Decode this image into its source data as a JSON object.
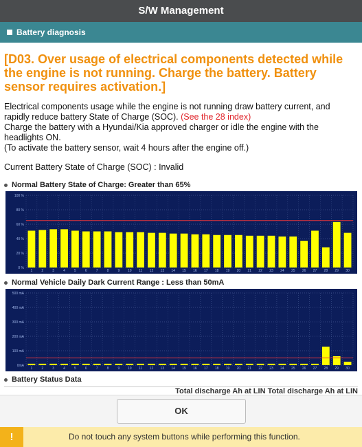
{
  "header": {
    "title": "S/W Management"
  },
  "section": {
    "title": "Battery diagnosis"
  },
  "message": {
    "heading": "[D03. Over usage of electrical components detected while the engine is not running. Charge the battery. Battery sensor requires activation.]",
    "body": "Electrical components usage while the engine is not running draw battery current, and rapidly reduce battery State of Charge (SOC).",
    "link": "(See the 28 index)",
    "lines": [
      " Charge the battery with a Hyundai/Kia approved charger or idle the engine with the headlights ON.",
      "(To activate the battery sensor, wait 4 hours after the engine off.)"
    ]
  },
  "soc_status": "Current Battery State of Charge (SOC) : Invalid",
  "chart_data": [
    {
      "type": "bar",
      "title": "Normal Battery State of Charge: Greater than 65%",
      "categories": [
        "1",
        "2",
        "3",
        "4",
        "5",
        "6",
        "7",
        "8",
        "9",
        "10",
        "11",
        "12",
        "13",
        "14",
        "15",
        "16",
        "17",
        "18",
        "19",
        "20",
        "21",
        "22",
        "23",
        "24",
        "25",
        "26",
        "27",
        "28",
        "29",
        "30"
      ],
      "values": [
        51,
        52,
        53,
        53,
        51,
        50,
        50,
        50,
        49,
        49,
        49,
        48,
        48,
        47,
        47,
        46,
        46,
        45,
        45,
        45,
        44,
        44,
        44,
        43,
        43,
        37,
        51,
        28,
        63,
        48
      ],
      "color": "#ffff00",
      "ylim": [
        0,
        100
      ],
      "yticks": [
        {
          "value": 0,
          "label": "0 %"
        },
        {
          "value": 20,
          "label": "20 %"
        },
        {
          "value": 40,
          "label": "40 %"
        },
        {
          "value": 60,
          "label": "60 %"
        },
        {
          "value": 80,
          "label": "80 %"
        },
        {
          "value": 100,
          "label": "100 %"
        }
      ],
      "threshold": 65,
      "threshold_color": "#e8343a",
      "grid": true
    },
    {
      "type": "bar",
      "title": "Normal Vehicle Daily Dark Current Range : Less than 50mA",
      "categories": [
        "1",
        "2",
        "3",
        "4",
        "5",
        "6",
        "7",
        "8",
        "9",
        "10",
        "11",
        "12",
        "13",
        "14",
        "15",
        "16",
        "17",
        "18",
        "19",
        "20",
        "21",
        "22",
        "23",
        "24",
        "25",
        "26",
        "27",
        "28",
        "29",
        "30"
      ],
      "values": [
        10,
        10,
        10,
        10,
        10,
        10,
        10,
        10,
        10,
        10,
        10,
        10,
        10,
        10,
        10,
        10,
        10,
        10,
        10,
        10,
        10,
        10,
        10,
        10,
        10,
        10,
        10,
        128,
        62,
        24
      ],
      "color": "#ffff00",
      "ylim": [
        0,
        500
      ],
      "yticks": [
        {
          "value": 0,
          "label": "0mA"
        },
        {
          "value": 100,
          "label": "100 mA"
        },
        {
          "value": 200,
          "label": "200 mA"
        },
        {
          "value": 300,
          "label": "300 mA"
        },
        {
          "value": 400,
          "label": "400 mA"
        },
        {
          "value": 500,
          "label": "500 mA"
        }
      ],
      "threshold": 50,
      "threshold_color": "#e8343a",
      "grid": true
    }
  ],
  "table": {
    "title": "Battery Status Data",
    "columns": [
      "Total discharge Ah at LIN",
      "Total discharge Ah at LIN"
    ]
  },
  "button": {
    "label": "OK"
  },
  "warning": {
    "icon": "!",
    "text": "Do not touch any system buttons while performing this function."
  }
}
